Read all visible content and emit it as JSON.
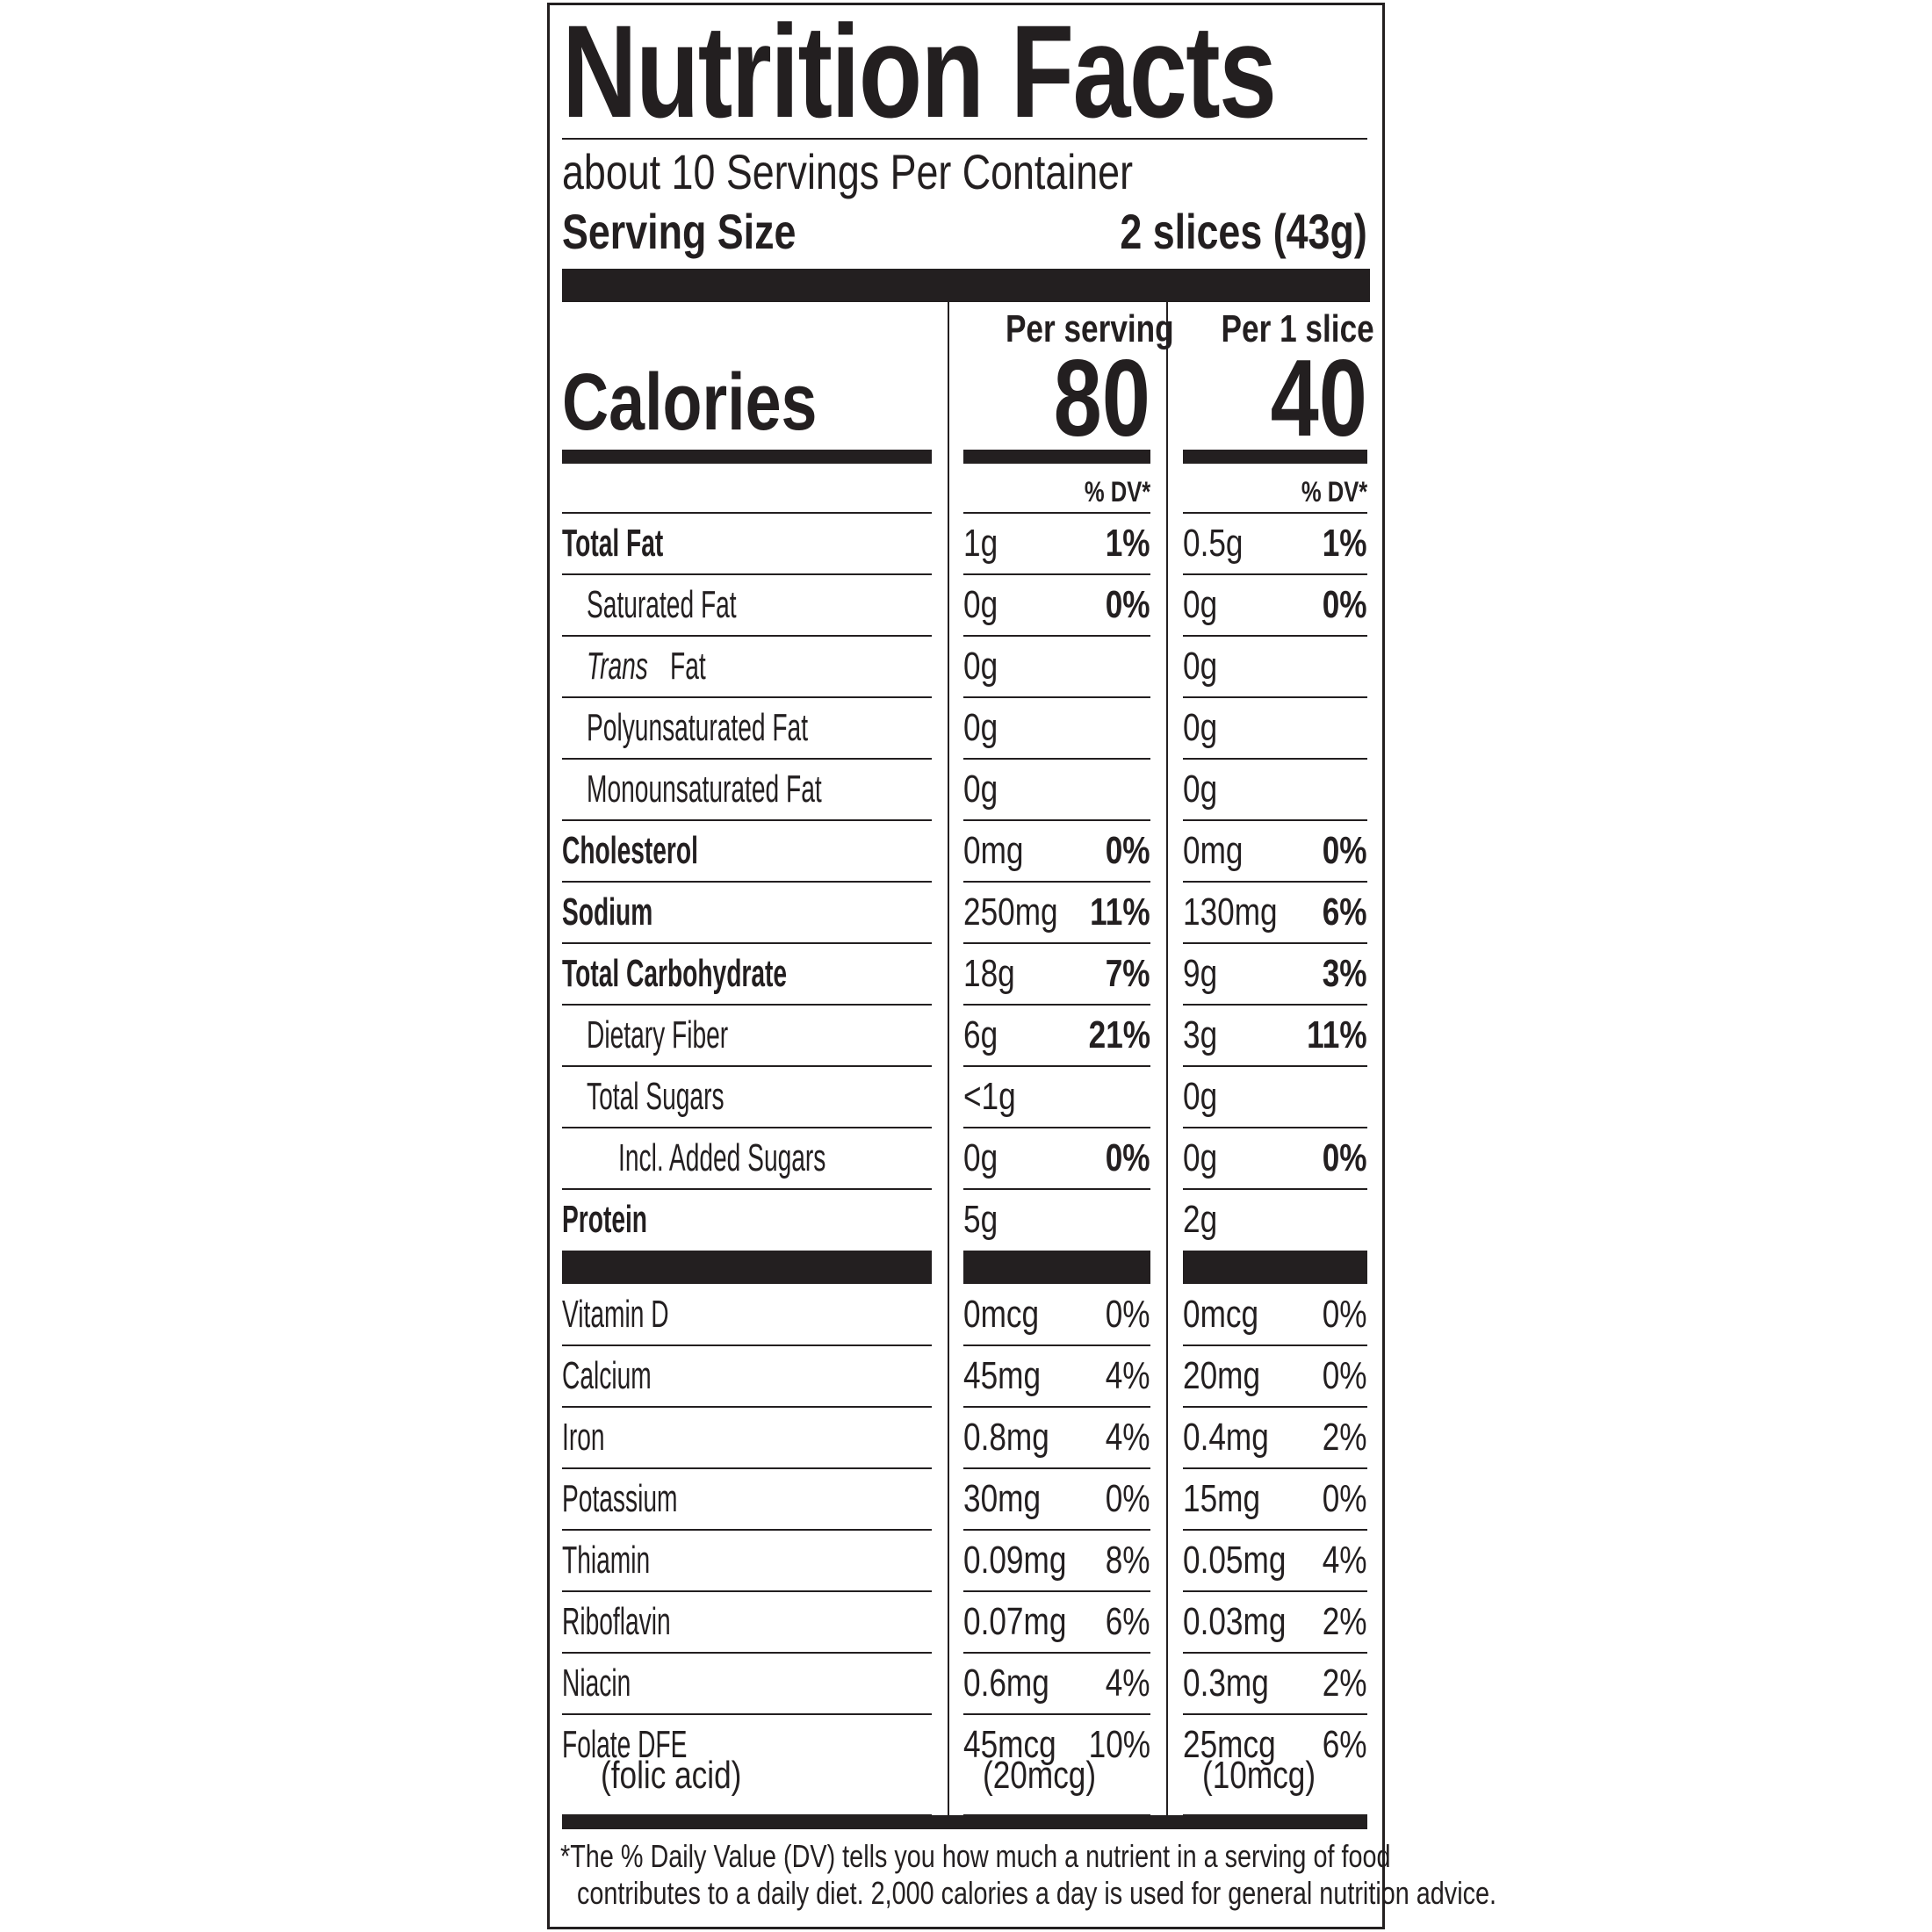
{
  "title": "Nutrition Facts",
  "servings_per_container": "about 10 Servings Per Container",
  "serving_size_label": "Serving Size",
  "serving_size_value": "2 slices (43g)",
  "calories_label": "Calories",
  "columns": [
    {
      "header": "Per serving",
      "calories": "80",
      "dv_header": "% DV*"
    },
    {
      "header": "Per 1 slice",
      "calories": "40",
      "dv_header": "% DV*"
    }
  ],
  "nutrients": [
    {
      "label": "Total Fat",
      "bold": true,
      "indent": 0,
      "values": [
        {
          "amount": "1g",
          "dv": "1%"
        },
        {
          "amount": "0.5g",
          "dv": "1%"
        }
      ]
    },
    {
      "label": "Saturated Fat",
      "bold": false,
      "indent": 1,
      "values": [
        {
          "amount": "0g",
          "dv": "0%"
        },
        {
          "amount": "0g",
          "dv": "0%"
        }
      ]
    },
    {
      "label_italic": "Trans",
      "label": " Fat",
      "bold": false,
      "indent": 1,
      "values": [
        {
          "amount": "0g",
          "dv": ""
        },
        {
          "amount": "0g",
          "dv": ""
        }
      ]
    },
    {
      "label": "Polyunsaturated Fat",
      "bold": false,
      "indent": 1,
      "values": [
        {
          "amount": "0g",
          "dv": ""
        },
        {
          "amount": "0g",
          "dv": ""
        }
      ]
    },
    {
      "label": "Monounsaturated Fat",
      "bold": false,
      "indent": 1,
      "values": [
        {
          "amount": "0g",
          "dv": ""
        },
        {
          "amount": "0g",
          "dv": ""
        }
      ]
    },
    {
      "label": "Cholesterol",
      "bold": true,
      "indent": 0,
      "values": [
        {
          "amount": "0mg",
          "dv": "0%"
        },
        {
          "amount": "0mg",
          "dv": "0%"
        }
      ]
    },
    {
      "label": "Sodium",
      "bold": true,
      "indent": 0,
      "values": [
        {
          "amount": "250mg",
          "dv": "11%"
        },
        {
          "amount": "130mg",
          "dv": "6%"
        }
      ]
    },
    {
      "label": "Total Carbohydrate",
      "bold": true,
      "indent": 0,
      "values": [
        {
          "amount": "18g",
          "dv": "7%"
        },
        {
          "amount": "9g",
          "dv": "3%"
        }
      ]
    },
    {
      "label": "Dietary Fiber",
      "bold": false,
      "indent": 1,
      "values": [
        {
          "amount": "6g",
          "dv": "21%"
        },
        {
          "amount": "3g",
          "dv": "11%"
        }
      ]
    },
    {
      "label": "Total Sugars",
      "bold": false,
      "indent": 1,
      "values": [
        {
          "amount": "<1g",
          "dv": ""
        },
        {
          "amount": "0g",
          "dv": ""
        }
      ]
    },
    {
      "label": "Incl. Added Sugars",
      "bold": false,
      "indent": 2,
      "values": [
        {
          "amount": "0g",
          "dv": "0%"
        },
        {
          "amount": "0g",
          "dv": "0%"
        }
      ]
    },
    {
      "label": "Protein",
      "bold": true,
      "indent": 0,
      "noline": true,
      "values": [
        {
          "amount": "5g",
          "dv": ""
        },
        {
          "amount": "2g",
          "dv": ""
        }
      ]
    }
  ],
  "vitamins": [
    {
      "label": "Vitamin D",
      "values": [
        {
          "amount": "0mcg",
          "dv": "0%"
        },
        {
          "amount": "0mcg",
          "dv": "0%"
        }
      ]
    },
    {
      "label": "Calcium",
      "values": [
        {
          "amount": "45mg",
          "dv": "4%"
        },
        {
          "amount": "20mg",
          "dv": "0%"
        }
      ]
    },
    {
      "label": "Iron",
      "values": [
        {
          "amount": "0.8mg",
          "dv": "4%"
        },
        {
          "amount": "0.4mg",
          "dv": "2%"
        }
      ]
    },
    {
      "label": "Potassium",
      "values": [
        {
          "amount": "30mg",
          "dv": "0%"
        },
        {
          "amount": "15mg",
          "dv": "0%"
        }
      ]
    },
    {
      "label": "Thiamin",
      "values": [
        {
          "amount": "0.09mg",
          "dv": "8%"
        },
        {
          "amount": "0.05mg",
          "dv": "4%"
        }
      ]
    },
    {
      "label": "Riboflavin",
      "values": [
        {
          "amount": "0.07mg",
          "dv": "6%"
        },
        {
          "amount": "0.03mg",
          "dv": "2%"
        }
      ]
    },
    {
      "label": "Niacin",
      "values": [
        {
          "amount": "0.6mg",
          "dv": "4%"
        },
        {
          "amount": "0.3mg",
          "dv": "2%"
        }
      ]
    },
    {
      "label": "Folate DFE",
      "sublabel": "(folic acid)",
      "tall": true,
      "values": [
        {
          "amount": "45mcg",
          "dv": "10%",
          "sub": "(20mcg)"
        },
        {
          "amount": "25mcg",
          "dv": "6%",
          "sub": "(10mcg)"
        }
      ]
    }
  ],
  "footnote": [
    "*The % Daily Value (DV) tells you how much a nutrient in a serving of food",
    "contributes to a daily diet. 2,000 calories a day is used for general nutrition advice."
  ]
}
